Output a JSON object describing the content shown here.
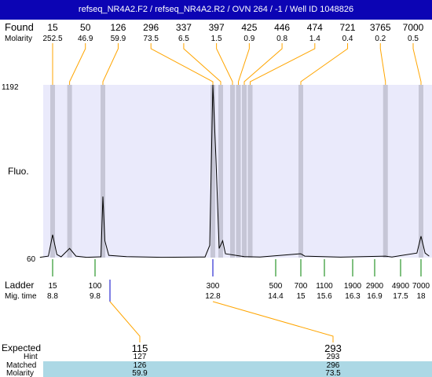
{
  "title": "refseq_NR4A2.F2 / refseq_NR4A2.R2 / OVN 264 / -1 / Well ID 1048826",
  "labels": {
    "found": "Found",
    "molarity": "Molarity",
    "fluo": "Fluo.",
    "ladder": "Ladder",
    "mig_time": "Mig. time",
    "expected": "Expected",
    "hint": "Hint",
    "matched": "Matched",
    "molarity_row": "Molarity"
  },
  "chart_data": {
    "type": "line",
    "title": "refseq_NR4A2.F2 / refseq_NR4A2.R2 / OVN 264 / -1 / Well ID 1048826",
    "ylabel": "Fluo.",
    "xlabel": "Mig. time",
    "ylim": [
      60,
      1192
    ],
    "x_axis_ticks": [
      8.8,
      9.8,
      12.8,
      14.4,
      15,
      15.6,
      16.3,
      16.9,
      17.5,
      18
    ],
    "found_peaks": [
      {
        "size": "15",
        "molarity": "252.5",
        "x": 8.8
      },
      {
        "size": "50",
        "molarity": "46.9",
        "x": 9.2
      },
      {
        "size": "126",
        "molarity": "59.9",
        "x": 10.0
      },
      {
        "size": "296",
        "molarity": "73.5",
        "x": 12.8
      },
      {
        "size": "337",
        "molarity": "6.5",
        "x": 13.0
      },
      {
        "size": "397",
        "molarity": "1.5",
        "x": 13.3
      },
      {
        "size": "425",
        "molarity": "0.9",
        "x": 13.45
      },
      {
        "size": "446",
        "molarity": "0.8",
        "x": 13.6
      },
      {
        "size": "474",
        "molarity": "1.4",
        "x": 13.75
      },
      {
        "size": "721",
        "molarity": "0.4",
        "x": 15.0
      },
      {
        "size": "3765",
        "molarity": "0.2",
        "x": 17.15
      },
      {
        "size": "7000",
        "molarity": "0.5",
        "x": 18.0
      }
    ],
    "ladder": [
      {
        "size": "15",
        "time": "8.8"
      },
      {
        "size": "100",
        "time": "9.8"
      },
      {
        "size": "300",
        "time": "12.8"
      },
      {
        "size": "500",
        "time": "14.4"
      },
      {
        "size": "700",
        "time": "15"
      },
      {
        "size": "1100",
        "time": "15.6"
      },
      {
        "size": "1900",
        "time": "16.3"
      },
      {
        "size": "2900",
        "time": "16.9"
      },
      {
        "size": "4900",
        "time": "17.5"
      },
      {
        "size": "7000",
        "time": "18"
      }
    ],
    "expected_table": [
      {
        "expected": "115",
        "hint": "127",
        "matched": "126",
        "molarity": "59.9"
      },
      {
        "expected": "293",
        "hint": "293",
        "matched": "296",
        "molarity": "73.5"
      }
    ],
    "trace": [
      [
        8.5,
        62
      ],
      [
        8.7,
        70
      ],
      [
        8.8,
        210
      ],
      [
        8.9,
        80
      ],
      [
        9.0,
        65
      ],
      [
        9.2,
        120
      ],
      [
        9.35,
        70
      ],
      [
        9.6,
        62
      ],
      [
        9.95,
        65
      ],
      [
        10.0,
        460
      ],
      [
        10.05,
        170
      ],
      [
        10.15,
        75
      ],
      [
        10.6,
        66
      ],
      [
        11.5,
        62
      ],
      [
        12.6,
        64
      ],
      [
        12.72,
        140
      ],
      [
        12.8,
        1192
      ],
      [
        12.88,
        700
      ],
      [
        12.96,
        120
      ],
      [
        13.05,
        170
      ],
      [
        13.12,
        85
      ],
      [
        13.6,
        66
      ],
      [
        14.0,
        64
      ],
      [
        15.0,
        85
      ],
      [
        15.1,
        70
      ],
      [
        16.0,
        63
      ],
      [
        17.15,
        70
      ],
      [
        17.3,
        64
      ],
      [
        17.9,
        90
      ],
      [
        18.0,
        200
      ],
      [
        18.1,
        90
      ],
      [
        18.2,
        70
      ]
    ]
  }
}
